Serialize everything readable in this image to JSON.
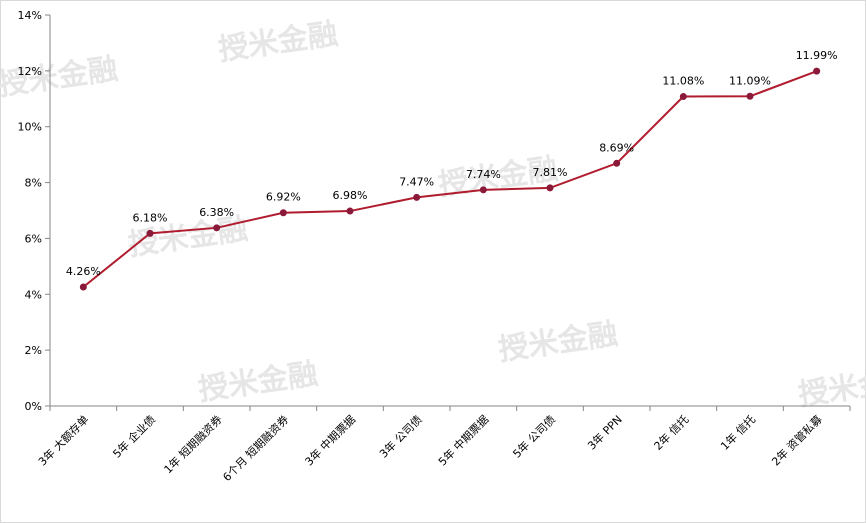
{
  "watermark": "授米金融",
  "chart_data": {
    "type": "line",
    "categories": [
      "3年 大额存单",
      "5年 企业债",
      "1年 短期融资券",
      "6个月 短期融资券",
      "3年 中期票据",
      "3年 公司债",
      "5年 中期票据",
      "5年 公司债",
      "3年 PPN",
      "2年 信托",
      "1年 信托",
      "2年 资管私募"
    ],
    "series": [
      {
        "color": "#b01c2e",
        "values": [
          4.26,
          6.18,
          6.38,
          6.92,
          6.98,
          7.47,
          7.74,
          7.81,
          8.69,
          11.08,
          11.09,
          11.99
        ],
        "value_labels": [
          "4.26%",
          "6.18%",
          "6.38%",
          "6.92%",
          "6.98%",
          "7.47%",
          "7.74%",
          "7.81%",
          "8.69%",
          "11.08%",
          "11.09%",
          "11.99%"
        ]
      }
    ],
    "ylim": [
      0,
      14
    ],
    "yticks": [
      {
        "value": 0,
        "label": "0%"
      },
      {
        "value": 2,
        "label": "2%"
      },
      {
        "value": 4,
        "label": "4%"
      },
      {
        "value": 6,
        "label": "6%"
      },
      {
        "value": 8,
        "label": "8%"
      },
      {
        "value": 10,
        "label": "10%"
      },
      {
        "value": 12,
        "label": "12%"
      },
      {
        "value": 14,
        "label": "14%"
      }
    ],
    "grid": false
  }
}
